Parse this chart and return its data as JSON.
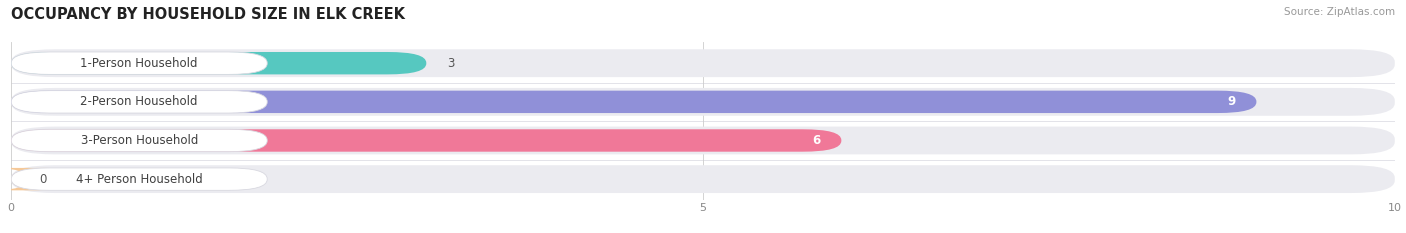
{
  "title": "OCCUPANCY BY HOUSEHOLD SIZE IN ELK CREEK",
  "source": "Source: ZipAtlas.com",
  "categories": [
    "1-Person Household",
    "2-Person Household",
    "3-Person Household",
    "4+ Person Household"
  ],
  "values": [
    3,
    9,
    6,
    0
  ],
  "bar_colors": [
    "#56c8c0",
    "#9090d8",
    "#f07898",
    "#f5c898"
  ],
  "bar_bg_color": "#ebebf0",
  "xlim": [
    0,
    10
  ],
  "xticks": [
    0,
    5,
    10
  ],
  "figsize": [
    14.06,
    2.33
  ],
  "dpi": 100,
  "background_color": "#ffffff",
  "label_box_color": "#ffffff",
  "title_fontsize": 10.5,
  "label_fontsize": 8.5,
  "value_fontsize": 8.5,
  "source_fontsize": 7.5
}
